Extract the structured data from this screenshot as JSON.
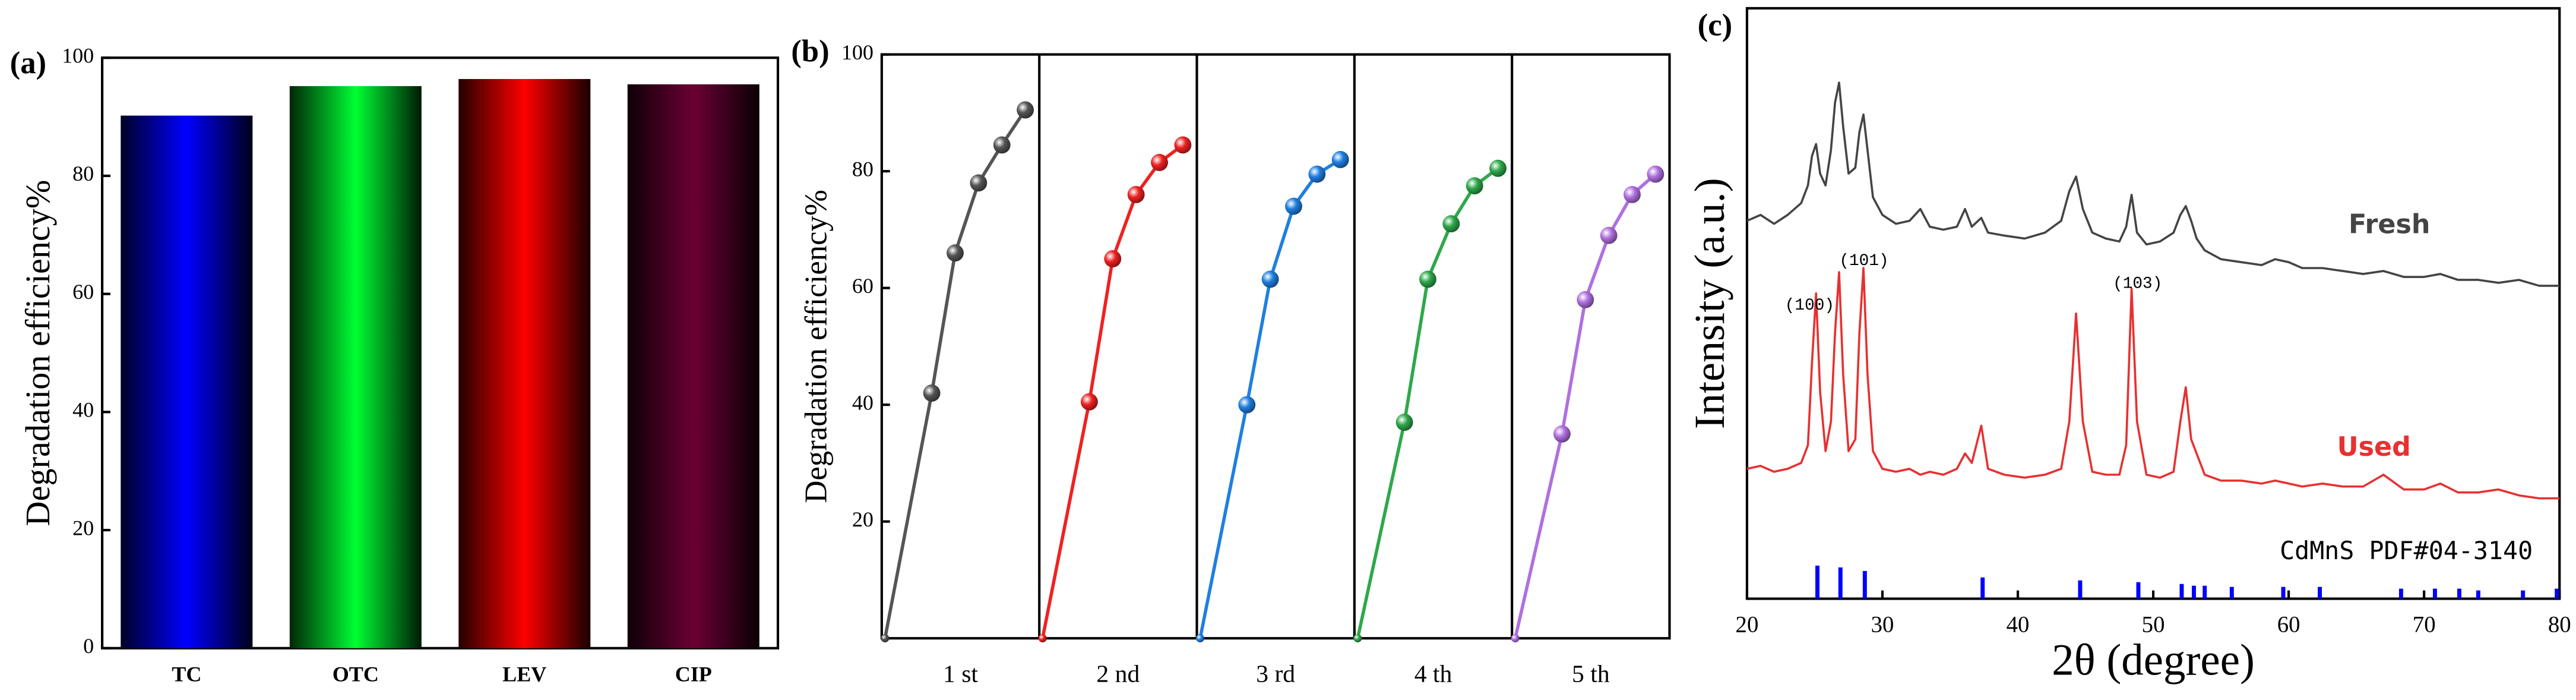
{
  "chart_data": [
    {
      "type": "bar",
      "panel_label": "(a)",
      "ylabel": "Degradation efficiency%",
      "categories": [
        "TC",
        "OTC",
        "LEV",
        "CIP"
      ],
      "values": [
        90.2,
        95.2,
        96.4,
        95.5
      ],
      "colors": [
        "#0000ff",
        "#00ff33",
        "#ff0000",
        "#6a0033"
      ],
      "ylim": [
        0,
        100
      ],
      "yticks": [
        0,
        20,
        40,
        60,
        80,
        100
      ]
    },
    {
      "type": "line",
      "facets": true,
      "panel_label": "(b)",
      "ylabel": "Degradation efficiency%",
      "x": [
        0,
        20,
        30,
        40,
        50,
        60
      ],
      "xlim": [
        -1.4,
        66
      ],
      "ylim": [
        0,
        100
      ],
      "yticks": [
        20,
        40,
        60,
        80,
        100
      ],
      "series": [
        {
          "name": "1 st",
          "color": "#555555",
          "values": [
            0,
            42,
            66,
            78,
            84.5,
            90.5
          ]
        },
        {
          "name": "2 nd",
          "color": "#ee2222",
          "values": [
            0,
            40.5,
            65,
            76,
            81.5,
            84.5
          ]
        },
        {
          "name": "3 rd",
          "color": "#1f7fe0",
          "values": [
            0,
            40,
            61.5,
            74,
            79.5,
            82
          ]
        },
        {
          "name": "4 th",
          "color": "#2ea84a",
          "values": [
            0,
            37,
            61.5,
            71,
            77.5,
            80.5
          ]
        },
        {
          "name": "5 th",
          "color": "#b070e0",
          "values": [
            0,
            35,
            58,
            69,
            76,
            79.5
          ]
        }
      ]
    },
    {
      "type": "line",
      "facets": false,
      "panel_label": "(c)",
      "xlabel": "2θ (degree)",
      "ylabel": "Intensity (a.u.)",
      "xlim": [
        20,
        80
      ],
      "xticks": [
        20,
        30,
        40,
        50,
        60,
        70,
        80
      ],
      "ylim": [
        0,
        100
      ],
      "x": [
        20,
        21,
        22,
        23,
        24,
        24.5,
        24.8,
        25.1,
        25.4,
        25.8,
        26.2,
        26.5,
        26.8,
        27.1,
        27.5,
        28,
        28.3,
        28.6,
        28.9,
        29.3,
        30,
        31,
        32,
        32.8,
        33.5,
        34.5,
        35.5,
        36.1,
        36.6,
        37.3,
        37.8,
        39,
        40.5,
        42,
        43.2,
        43.8,
        44.3,
        44.8,
        45.5,
        46.5,
        47.5,
        48,
        48.4,
        48.8,
        49.5,
        50.5,
        51.5,
        52,
        52.4,
        52.8,
        53.2,
        53.8,
        55,
        56.5,
        58,
        59,
        60,
        61,
        62.5,
        64,
        65.5,
        67,
        68.5,
        70,
        71.2,
        72.5,
        74,
        75.5,
        77,
        78.5,
        80
      ],
      "series": [
        {
          "name": "Fresh",
          "color": "#444444",
          "values": [
            64,
            65,
            63.5,
            65,
            67,
            70,
            75,
            77,
            72,
            70,
            76,
            84,
            87.4,
            80,
            72,
            73,
            79,
            82,
            76,
            68,
            65,
            63.5,
            64,
            66,
            63,
            62.5,
            63,
            66,
            63,
            64.5,
            62,
            61.5,
            61,
            62,
            64,
            69,
            71.5,
            66,
            62,
            61,
            60.5,
            63,
            68.4,
            62,
            60,
            60.5,
            62,
            65,
            66.5,
            64,
            61,
            59,
            57.5,
            57,
            56.5,
            57.5,
            57,
            56,
            56,
            55.5,
            55,
            55.5,
            54.5,
            54.5,
            55,
            54,
            54,
            53.5,
            54,
            53,
            53
          ]
        },
        {
          "name": "Used",
          "color": "#e83030",
          "values": [
            22,
            22.5,
            21.5,
            22,
            23,
            26,
            40,
            51.7,
            35,
            25,
            30,
            45,
            55.3,
            38,
            25,
            27,
            45,
            56,
            38,
            25,
            22,
            21.5,
            22,
            21,
            21.5,
            21,
            22,
            24.6,
            23,
            29.3,
            22,
            21,
            20.5,
            21,
            22,
            30,
            48.3,
            30,
            21.5,
            21,
            21,
            26,
            52.5,
            30,
            21,
            20.5,
            21.5,
            30,
            35.8,
            27,
            24.6,
            21,
            20,
            20,
            19.5,
            20,
            19.5,
            19,
            19.5,
            19,
            19,
            21,
            18.5,
            18.5,
            19.5,
            18,
            18,
            18.5,
            17.5,
            17,
            17
          ]
        }
      ],
      "annotations": [
        "(100)",
        "(101)",
        "(103)"
      ],
      "sticks": {
        "name": "CdMnS PDF#04-3140",
        "color": "#0000ff",
        "x": [
          25.2,
          26.9,
          28.7,
          37.4,
          44.6,
          48.9,
          52.1,
          53.0,
          53.8,
          55.8,
          59.6,
          62.3,
          68.3,
          70.8,
          72.6,
          74.0,
          77.3,
          79.8
        ],
        "values": [
          5.6,
          5.3,
          4.7,
          3.6,
          3.1,
          2.8,
          2.5,
          2.2,
          2.2,
          2,
          2,
          2,
          1.7,
          1.7,
          1.7,
          1.4,
          1.4,
          1.7
        ]
      }
    }
  ]
}
